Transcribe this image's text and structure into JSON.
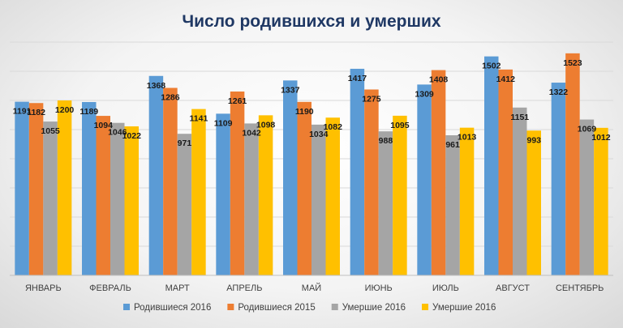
{
  "chart_data": {
    "type": "bar",
    "title": "Число родившихся и умерших",
    "xlabel": "",
    "ylabel": "",
    "categories": [
      "ЯНВАРЬ",
      "ФЕВРАЛЬ",
      "МАРТ",
      "АПРЕЛЬ",
      "МАЙ",
      "ИЮНЬ",
      "ИЮЛЬ",
      "АВГУСТ",
      "СЕНТЯБРЬ"
    ],
    "series": [
      {
        "name": "Родившиеся 2016",
        "color": "#5b9bd5",
        "values": [
          1191,
          1189,
          1368,
          1109,
          1337,
          1417,
          1309,
          1502,
          1322
        ]
      },
      {
        "name": "Родившиеся 2015",
        "color": "#ed7d31",
        "values": [
          1182,
          1094,
          1286,
          1261,
          1190,
          1275,
          1408,
          1412,
          1523
        ]
      },
      {
        "name": "Умершие 2016",
        "color": "#a5a5a5",
        "values": [
          1055,
          1046,
          971,
          1042,
          1034,
          988,
          961,
          1151,
          1069
        ]
      },
      {
        "name": "Умершие 2016",
        "color": "#ffc000",
        "values": [
          1200,
          1022,
          1141,
          1098,
          1082,
          1095,
          1013,
          993,
          1012
        ]
      }
    ],
    "ylim": [
      0,
      1600
    ],
    "y_axis_labels_shown": false,
    "grid": true,
    "legend_position": "bottom",
    "data_labels": true
  }
}
